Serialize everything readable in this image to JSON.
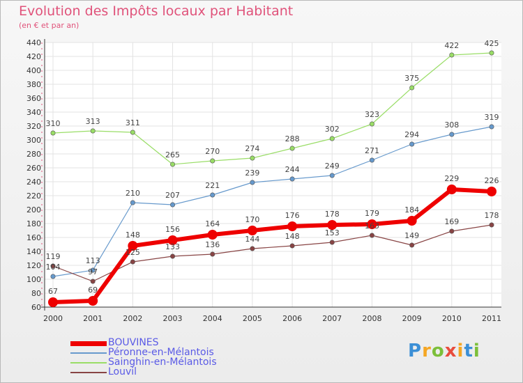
{
  "chart_data": {
    "type": "line",
    "title": "Evolution des Impôts locaux par Habitant",
    "subtitle": "(en € et par an)",
    "x": [
      "2000",
      "2001",
      "2002",
      "2003",
      "2004",
      "2005",
      "2006",
      "2007",
      "2008",
      "2009",
      "2010",
      "2011"
    ],
    "ylim": [
      60,
      440
    ],
    "yticks": [
      60,
      80,
      100,
      120,
      140,
      160,
      180,
      200,
      220,
      240,
      260,
      280,
      300,
      320,
      340,
      360,
      380,
      400,
      420,
      440
    ],
    "grid": true,
    "legend_position": "bottom-left",
    "series": [
      {
        "name": "BOUVINES",
        "values": [
          67,
          69,
          148,
          156,
          164,
          170,
          176,
          178,
          179,
          184,
          229,
          226
        ],
        "color": "#ee0000"
      },
      {
        "name": "Péronne-en-Mélantois",
        "values": [
          104,
          113,
          210,
          207,
          221,
          239,
          244,
          249,
          271,
          294,
          308,
          319
        ],
        "color": "#6699cc"
      },
      {
        "name": "Sainghin-en-Mélantois",
        "values": [
          310,
          313,
          311,
          265,
          270,
          274,
          288,
          302,
          323,
          375,
          422,
          425
        ],
        "color": "#99dd66"
      },
      {
        "name": "Louvil",
        "values": [
          119,
          97,
          125,
          133,
          136,
          144,
          148,
          153,
          163,
          149,
          169,
          178
        ],
        "color": "#884444"
      }
    ]
  },
  "logo": {
    "text": "Proxiti",
    "colors": [
      "#3b8fd6",
      "#f5a623",
      "#7cbf3a",
      "#e84c3d",
      "#f5a623",
      "#3b8fd6",
      "#7cbf3a"
    ]
  }
}
